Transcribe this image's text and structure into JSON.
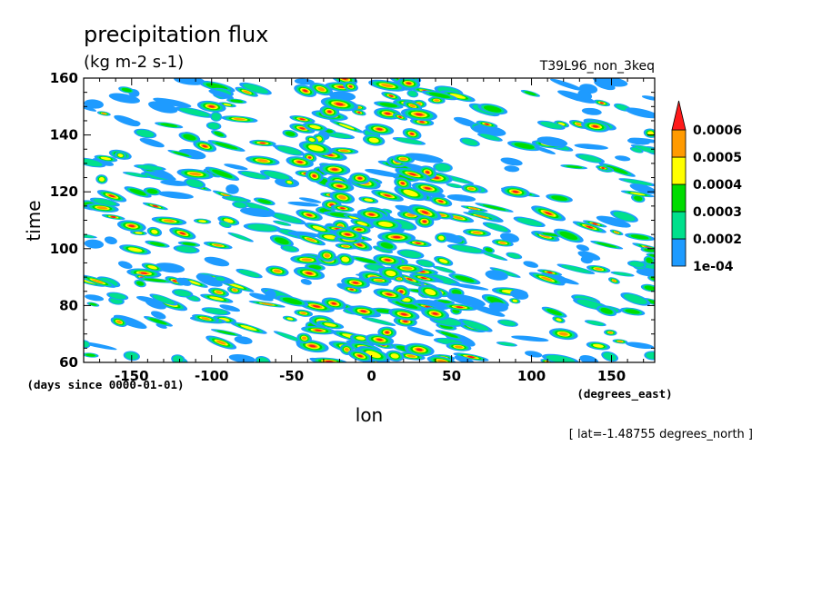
{
  "chart_data": {
    "type": "heatmap",
    "title": "precipitation flux",
    "units": "(kg m-2 s-1)",
    "run_label": "T39L96_non_3keq",
    "xlabel": "lon",
    "x_units": "(degrees_east)",
    "ylabel": "time",
    "y_units": "(days since 0000-01-01)",
    "xlim": [
      -180,
      177
    ],
    "ylim": [
      60,
      160
    ],
    "x_ticks": [
      -150,
      -100,
      -50,
      0,
      50,
      100,
      150
    ],
    "x_tick_labels": [
      "-150",
      "-100",
      "-50",
      "0",
      "50",
      "100",
      "150"
    ],
    "y_ticks": [
      60,
      80,
      100,
      120,
      140,
      160
    ],
    "y_tick_labels": [
      "60",
      "80",
      "100",
      "120",
      "140",
      "160"
    ],
    "slice_note": "[ lat=-1.48755 degrees_north ]",
    "colorbar": {
      "levels": [
        0.0001,
        0.0002,
        0.0003,
        0.0004,
        0.0005,
        0.0006
      ],
      "level_labels": [
        "1e-04",
        "0.0002",
        "0.0003",
        "0.0004",
        "0.0005",
        "0.0006"
      ],
      "colors": [
        "#1e9bff",
        "#00e08c",
        "#00dc00",
        "#ffff00",
        "#ff9a00",
        "#ff1a1a"
      ],
      "extend": "max"
    },
    "features": [
      {
        "lon": 5,
        "time": 68,
        "intensity": 0.00075
      },
      {
        "lon": -5,
        "time": 78,
        "intensity": 0.0007
      },
      {
        "lon": -10,
        "time": 88,
        "intensity": 0.00072
      },
      {
        "lon": 10,
        "time": 96,
        "intensity": 0.0007
      },
      {
        "lon": -15,
        "time": 105,
        "intensity": 0.00065
      },
      {
        "lon": 0,
        "time": 112,
        "intensity": 0.0007
      },
      {
        "lon": -20,
        "time": 122,
        "intensity": 0.00062
      },
      {
        "lon": 5,
        "time": 142,
        "intensity": 0.0007
      },
      {
        "lon": -100,
        "time": 150,
        "intensity": 0.00065
      },
      {
        "lon": -150,
        "time": 108,
        "intensity": 0.0006
      },
      {
        "lon": 140,
        "time": 143,
        "intensity": 0.00062
      },
      {
        "lon": 90,
        "time": 120,
        "intensity": 0.0006
      },
      {
        "lon": 120,
        "time": 70,
        "intensity": 0.00058
      }
    ]
  }
}
